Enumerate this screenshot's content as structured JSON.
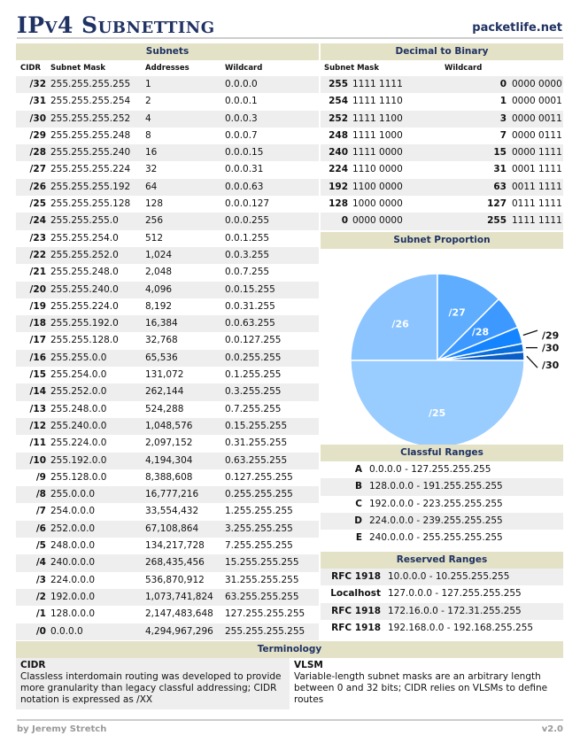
{
  "header": {
    "title": "IPv4 Subnetting",
    "site": "packetlife.net"
  },
  "subnets": {
    "title": "Subnets",
    "columns": [
      "CIDR",
      "Subnet Mask",
      "Addresses",
      "Wildcard"
    ],
    "rows": [
      [
        "/32",
        "255.255.255.255",
        "1",
        "0.0.0.0"
      ],
      [
        "/31",
        "255.255.255.254",
        "2",
        "0.0.0.1"
      ],
      [
        "/30",
        "255.255.255.252",
        "4",
        "0.0.0.3"
      ],
      [
        "/29",
        "255.255.255.248",
        "8",
        "0.0.0.7"
      ],
      [
        "/28",
        "255.255.255.240",
        "16",
        "0.0.0.15"
      ],
      [
        "/27",
        "255.255.255.224",
        "32",
        "0.0.0.31"
      ],
      [
        "/26",
        "255.255.255.192",
        "64",
        "0.0.0.63"
      ],
      [
        "/25",
        "255.255.255.128",
        "128",
        "0.0.0.127"
      ],
      [
        "/24",
        "255.255.255.0",
        "256",
        "0.0.0.255"
      ],
      [
        "/23",
        "255.255.254.0",
        "512",
        "0.0.1.255"
      ],
      [
        "/22",
        "255.255.252.0",
        "1,024",
        "0.0.3.255"
      ],
      [
        "/21",
        "255.255.248.0",
        "2,048",
        "0.0.7.255"
      ],
      [
        "/20",
        "255.255.240.0",
        "4,096",
        "0.0.15.255"
      ],
      [
        "/19",
        "255.255.224.0",
        "8,192",
        "0.0.31.255"
      ],
      [
        "/18",
        "255.255.192.0",
        "16,384",
        "0.0.63.255"
      ],
      [
        "/17",
        "255.255.128.0",
        "32,768",
        "0.0.127.255"
      ],
      [
        "/16",
        "255.255.0.0",
        "65,536",
        "0.0.255.255"
      ],
      [
        "/15",
        "255.254.0.0",
        "131,072",
        "0.1.255.255"
      ],
      [
        "/14",
        "255.252.0.0",
        "262,144",
        "0.3.255.255"
      ],
      [
        "/13",
        "255.248.0.0",
        "524,288",
        "0.7.255.255"
      ],
      [
        "/12",
        "255.240.0.0",
        "1,048,576",
        "0.15.255.255"
      ],
      [
        "/11",
        "255.224.0.0",
        "2,097,152",
        "0.31.255.255"
      ],
      [
        "/10",
        "255.192.0.0",
        "4,194,304",
        "0.63.255.255"
      ],
      [
        "/9",
        "255.128.0.0",
        "8,388,608",
        "0.127.255.255"
      ],
      [
        "/8",
        "255.0.0.0",
        "16,777,216",
        "0.255.255.255"
      ],
      [
        "/7",
        "254.0.0.0",
        "33,554,432",
        "1.255.255.255"
      ],
      [
        "/6",
        "252.0.0.0",
        "67,108,864",
        "3.255.255.255"
      ],
      [
        "/5",
        "248.0.0.0",
        "134,217,728",
        "7.255.255.255"
      ],
      [
        "/4",
        "240.0.0.0",
        "268,435,456",
        "15.255.255.255"
      ],
      [
        "/3",
        "224.0.0.0",
        "536,870,912",
        "31.255.255.255"
      ],
      [
        "/2",
        "192.0.0.0",
        "1,073,741,824",
        "63.255.255.255"
      ],
      [
        "/1",
        "128.0.0.0",
        "2,147,483,648",
        "127.255.255.255"
      ],
      [
        "/0",
        "0.0.0.0",
        "4,294,967,296",
        "255.255.255.255"
      ]
    ]
  },
  "dec2bin": {
    "title": "Decimal to Binary",
    "columns": [
      "Subnet Mask",
      "Wildcard"
    ],
    "rows": [
      [
        "255",
        "1111 1111",
        "0",
        "0000 0000"
      ],
      [
        "254",
        "1111 1110",
        "1",
        "0000 0001"
      ],
      [
        "252",
        "1111 1100",
        "3",
        "0000 0011"
      ],
      [
        "248",
        "1111 1000",
        "7",
        "0000 0111"
      ],
      [
        "240",
        "1111 0000",
        "15",
        "0000 1111"
      ],
      [
        "224",
        "1110 0000",
        "31",
        "0001 1111"
      ],
      [
        "192",
        "1100 0000",
        "63",
        "0011 1111"
      ],
      [
        "128",
        "1000 0000",
        "127",
        "0111 1111"
      ],
      [
        "0",
        "0000 0000",
        "255",
        "1111 1111"
      ]
    ]
  },
  "proportion": {
    "title": "Subnet Proportion",
    "slices": [
      {
        "label": "/26",
        "value": 64,
        "color": "#8cc4ff"
      },
      {
        "label": "/27",
        "value": 32,
        "color": "#5eadff"
      },
      {
        "label": "/28",
        "value": 16,
        "color": "#3d99ff"
      },
      {
        "label": "/29",
        "value": 8,
        "color": "#1585ff"
      },
      {
        "label": "/30",
        "value": 4,
        "color": "#0a6fdc"
      },
      {
        "label": "/30",
        "value": 4,
        "color": "#0a5ec6"
      },
      {
        "label": "/25",
        "value": 128,
        "color": "#99ccff"
      }
    ]
  },
  "classful": {
    "title": "Classful Ranges",
    "rows": [
      [
        "A",
        "0.0.0.0 - 127.255.255.255"
      ],
      [
        "B",
        "128.0.0.0 - 191.255.255.255"
      ],
      [
        "C",
        "192.0.0.0 - 223.255.255.255"
      ],
      [
        "D",
        "224.0.0.0 - 239.255.255.255"
      ],
      [
        "E",
        "240.0.0.0 - 255.255.255.255"
      ]
    ]
  },
  "reserved": {
    "title": "Reserved Ranges",
    "rows": [
      [
        "RFC 1918",
        "10.0.0.0 - 10.255.255.255"
      ],
      [
        "Localhost",
        "127.0.0.0 - 127.255.255.255"
      ],
      [
        "RFC 1918",
        "172.16.0.0 - 172.31.255.255"
      ],
      [
        "RFC 1918",
        "192.168.0.0 - 192.168.255.255"
      ]
    ]
  },
  "terminology": {
    "title": "Terminology",
    "items": [
      {
        "term": "CIDR",
        "text": "Classless interdomain routing was developed to provide more granularity than legacy classful addressing; CIDR notation is expressed as /XX"
      },
      {
        "term": "VLSM",
        "text": "Variable-length subnet masks are an arbitrary length between 0 and 32 bits; CIDR relies on VLSMs to define routes"
      }
    ]
  },
  "footer": {
    "author": "by Jeremy Stretch",
    "version": "v2.0"
  }
}
